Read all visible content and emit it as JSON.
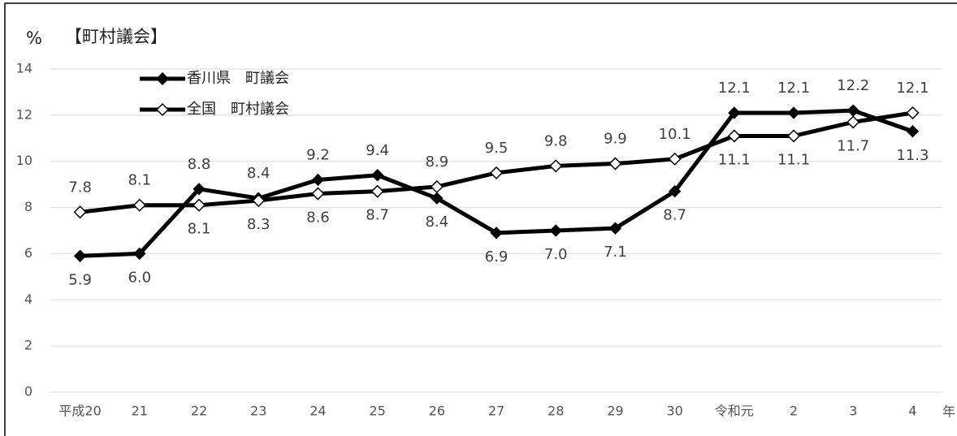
{
  "chart_data": {
    "type": "line",
    "title": "【町村議会】",
    "y_label": "%",
    "x_label": "年",
    "categories": [
      "平成20",
      "21",
      "22",
      "23",
      "24",
      "25",
      "26",
      "27",
      "28",
      "29",
      "30",
      "令和元",
      "2",
      "3",
      "4"
    ],
    "series": [
      {
        "name": "香川県　町議会",
        "color": "#000000",
        "marker": "filled-diamond",
        "values": [
          5.9,
          6.0,
          8.8,
          8.4,
          9.2,
          9.4,
          8.4,
          6.9,
          7.0,
          7.1,
          8.7,
          12.1,
          12.1,
          12.2,
          11.3
        ],
        "value_labels": [
          "5.9",
          "6.0",
          "8.8",
          "8.4",
          "9.2",
          "9.4",
          "8.4",
          "6.9",
          "7.0",
          "7.1",
          "8.7",
          "12.1",
          "12.1",
          "12.2",
          "11.3"
        ]
      },
      {
        "name": "全国　町村議会",
        "color": "#000000",
        "marker": "hollow-diamond",
        "values": [
          7.8,
          8.1,
          8.1,
          8.3,
          8.6,
          8.7,
          8.9,
          9.5,
          9.8,
          9.9,
          10.1,
          11.1,
          11.1,
          11.7,
          12.1
        ],
        "value_labels": [
          "7.8",
          "8.1",
          "8.1",
          "8.3",
          "8.6",
          "8.7",
          "8.9",
          "9.5",
          "9.8",
          "9.9",
          "10.1",
          "11.1",
          "11.1",
          "11.7",
          "12.1"
        ]
      }
    ],
    "ylim": [
      0,
      14
    ],
    "yticks": [
      0,
      2,
      4,
      6,
      8,
      10,
      12,
      14
    ],
    "grid": true
  }
}
